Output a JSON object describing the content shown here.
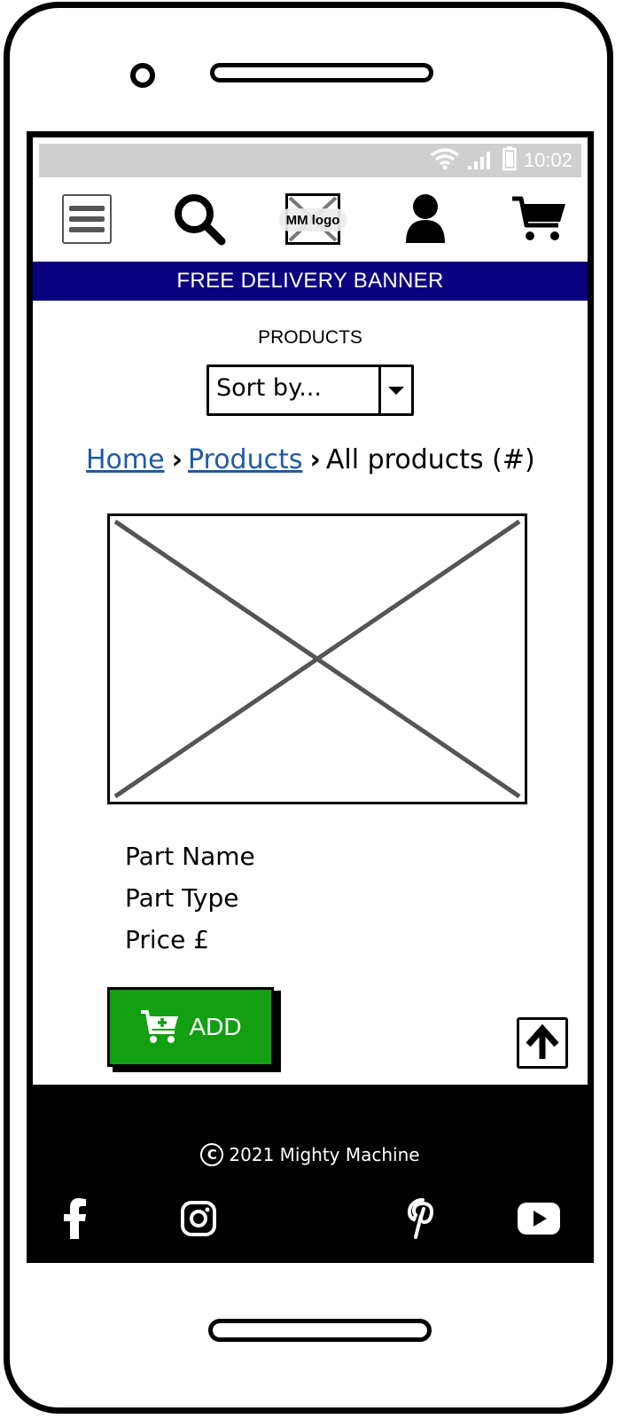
{
  "status_bar": {
    "time": "10:02"
  },
  "header": {
    "logo_text": "MM logo"
  },
  "banner": {
    "text": "FREE DELIVERY BANNER"
  },
  "main": {
    "title": "PRODUCTS",
    "sort": {
      "selected": "Sort by..."
    },
    "breadcrumb": {
      "items": [
        {
          "label": "Home"
        },
        {
          "label": "Products"
        },
        {
          "label": "All products (#)"
        }
      ]
    },
    "product": {
      "name": "Part Name",
      "type": "Part Type",
      "price": "Price £",
      "add_label": "ADD"
    }
  },
  "footer": {
    "copyright": "2021 Mighty Machine",
    "social": [
      "facebook-icon",
      "instagram-icon",
      "pinterest-icon",
      "youtube-icon"
    ]
  },
  "colors": {
    "banner": "#0b0080",
    "add_button": "#12a012",
    "link": "#1f5aa6",
    "statusbar": "#cfcfcf"
  }
}
